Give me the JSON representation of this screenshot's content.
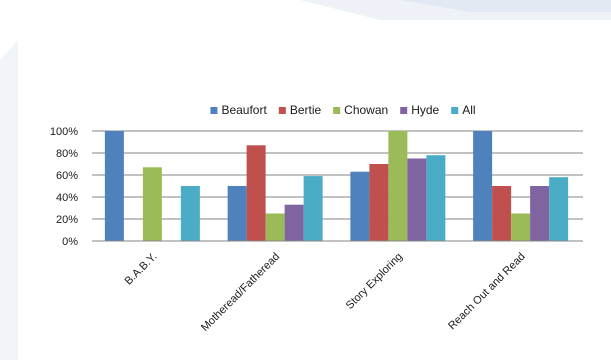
{
  "chart_data": {
    "type": "bar",
    "title": "",
    "xlabel": "",
    "ylabel": "",
    "ylim": [
      0,
      1
    ],
    "yticks": [
      0,
      0.2,
      0.4,
      0.6,
      0.8,
      1.0
    ],
    "ytick_labels": [
      "0%",
      "20%",
      "40%",
      "60%",
      "80%",
      "100%"
    ],
    "grid": true,
    "legend_position": "top",
    "categories": [
      "B.A.B.Y.",
      "Motheread/Fatheread",
      "Story Exploring",
      "Reach Out and Read"
    ],
    "series": [
      {
        "name": "Beaufort",
        "color": "#4f81bd",
        "values": [
          1.0,
          0.5,
          0.63,
          1.0
        ]
      },
      {
        "name": "Bertie",
        "color": "#c0504d",
        "values": [
          0,
          0.87,
          0.7,
          0.5
        ]
      },
      {
        "name": "Chowan",
        "color": "#9bbb59",
        "values": [
          0.67,
          0.25,
          1.0,
          0.25
        ]
      },
      {
        "name": "Hyde",
        "color": "#8064a2",
        "values": [
          0,
          0.33,
          0.75,
          0.5
        ]
      },
      {
        "name": "All",
        "color": "#4bacc6",
        "values": [
          0.5,
          0.59,
          0.78,
          0.58
        ]
      }
    ]
  }
}
